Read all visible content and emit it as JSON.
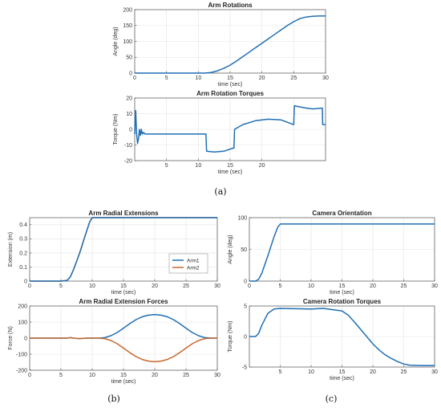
{
  "panel_labels": [
    "(a)",
    "(b)",
    "(c)"
  ],
  "chart_data": [
    {
      "id": "arm-rotations",
      "type": "line",
      "title": "Arm Rotations",
      "xlabel": "time (sec)",
      "ylabel": "Angle (deg)",
      "xlim": [
        0,
        30
      ],
      "ylim": [
        0,
        200
      ],
      "xticks": [
        0,
        5,
        10,
        15,
        20,
        25,
        30
      ],
      "yticks": [
        0,
        50,
        100,
        150,
        200
      ],
      "grid": true,
      "colors": [
        "#1f6fb4"
      ],
      "series": [
        {
          "values": [
            [
              0,
              0
            ],
            [
              5,
              0
            ],
            [
              10,
              0
            ],
            [
              11,
              0
            ],
            [
              12,
              2
            ],
            [
              13,
              7
            ],
            [
              14,
              15
            ],
            [
              15,
              25
            ],
            [
              16,
              38
            ],
            [
              17,
              52
            ],
            [
              18,
              66
            ],
            [
              19,
              80
            ],
            [
              20,
              94
            ],
            [
              21,
              108
            ],
            [
              22,
              122
            ],
            [
              23,
              136
            ],
            [
              24,
              150
            ],
            [
              25,
              162
            ],
            [
              26,
              172
            ],
            [
              27,
              177
            ],
            [
              28,
              179
            ],
            [
              29,
              180
            ],
            [
              30,
              180
            ]
          ]
        }
      ]
    },
    {
      "id": "arm-rotation-torques",
      "type": "line",
      "title": "Arm Rotation Torques",
      "xlabel": "time (sec)",
      "ylabel": "Torque (Nm)",
      "xlim": [
        0,
        30
      ],
      "ylim": [
        -20,
        20
      ],
      "xticks": [
        5,
        10,
        15,
        20
      ],
      "yticks": [
        -20,
        -10,
        0,
        10,
        20
      ],
      "grid": true,
      "colors": [
        "#1f6fb4"
      ],
      "series": [
        {
          "values": [
            [
              0,
              -3
            ],
            [
              0.15,
              12
            ],
            [
              0.3,
              -3
            ],
            [
              0.45,
              -9
            ],
            [
              0.6,
              -6
            ],
            [
              0.75,
              0
            ],
            [
              0.9,
              -4
            ],
            [
              1.05,
              0
            ],
            [
              1.2,
              -3
            ],
            [
              1.4,
              -2
            ],
            [
              1.6,
              -3
            ],
            [
              2,
              -3
            ],
            [
              11.2,
              -3
            ],
            [
              11.3,
              -14
            ],
            [
              12.5,
              -14.5
            ],
            [
              14,
              -14
            ],
            [
              15.5,
              -12
            ],
            [
              15.6,
              -12
            ],
            [
              15.7,
              0
            ],
            [
              17,
              3
            ],
            [
              19,
              5.5
            ],
            [
              21,
              6.5
            ],
            [
              23,
              6
            ],
            [
              25,
              3
            ],
            [
              25.1,
              15
            ],
            [
              27,
              13.5
            ],
            [
              28,
              13
            ],
            [
              29.5,
              13.5
            ],
            [
              29.55,
              3
            ],
            [
              30,
              3
            ]
          ]
        }
      ]
    },
    {
      "id": "arm-radial-extensions",
      "type": "line",
      "title": "Arm Radial Extensions",
      "xlabel": "time (sec)",
      "ylabel": "Extension (m)",
      "xlim": [
        0,
        30
      ],
      "ylim": [
        0,
        0.45
      ],
      "xticks": [
        0,
        5,
        10,
        15,
        20,
        25,
        30
      ],
      "yticks": [
        0,
        0.1,
        0.2,
        0.3,
        0.4
      ],
      "grid": true,
      "legend": "center-right",
      "colors": [
        "#1f6fb4",
        "#c8682e"
      ],
      "series": [
        {
          "name": "Arm1",
          "values": [
            [
              0,
              0
            ],
            [
              5,
              0
            ],
            [
              6,
              0.005
            ],
            [
              6.5,
              0.03
            ],
            [
              7,
              0.08
            ],
            [
              8,
              0.2
            ],
            [
              9,
              0.34
            ],
            [
              9.6,
              0.42
            ],
            [
              10,
              0.45
            ],
            [
              30,
              0.45
            ]
          ]
        },
        {
          "name": "Arm2",
          "values": [
            [
              0,
              0
            ],
            [
              5,
              0
            ],
            [
              6,
              0.005
            ],
            [
              6.5,
              0.03
            ],
            [
              7,
              0.08
            ],
            [
              8,
              0.2
            ],
            [
              9,
              0.34
            ],
            [
              9.6,
              0.42
            ],
            [
              10,
              0.45
            ],
            [
              30,
              0.45
            ]
          ]
        }
      ]
    },
    {
      "id": "arm-radial-extension-forces",
      "type": "line",
      "title": "Arm Radial Extension Forces",
      "xlabel": "time (sec)",
      "ylabel": "Force (N)",
      "xlim": [
        0,
        30
      ],
      "ylim": [
        -200,
        200
      ],
      "xticks": [
        0,
        5,
        10,
        15,
        20,
        25,
        30
      ],
      "yticks": [
        -200,
        -100,
        0,
        100,
        200
      ],
      "grid": true,
      "colors": [
        "#1f6fb4",
        "#c8682e"
      ],
      "series": [
        {
          "values": [
            [
              0,
              0
            ],
            [
              6,
              0
            ],
            [
              6.5,
              3
            ],
            [
              7,
              0
            ],
            [
              8,
              -3
            ],
            [
              9,
              0
            ],
            [
              10,
              0
            ],
            [
              11,
              0
            ],
            [
              12,
              3
            ],
            [
              13,
              15
            ],
            [
              14,
              35
            ],
            [
              15,
              62
            ],
            [
              16,
              90
            ],
            [
              17,
              115
            ],
            [
              18,
              133
            ],
            [
              19,
              143
            ],
            [
              20,
              147
            ],
            [
              21,
              143
            ],
            [
              22,
              133
            ],
            [
              23,
              115
            ],
            [
              24,
              90
            ],
            [
              25,
              62
            ],
            [
              26,
              35
            ],
            [
              27,
              15
            ],
            [
              28,
              3
            ],
            [
              29,
              0
            ],
            [
              30,
              0
            ]
          ]
        },
        {
          "values": [
            [
              0,
              0
            ],
            [
              6,
              0
            ],
            [
              6.5,
              3
            ],
            [
              7,
              0
            ],
            [
              8,
              -3
            ],
            [
              9,
              0
            ],
            [
              10,
              0
            ],
            [
              11,
              0
            ],
            [
              12,
              -3
            ],
            [
              13,
              -15
            ],
            [
              14,
              -35
            ],
            [
              15,
              -62
            ],
            [
              16,
              -90
            ],
            [
              17,
              -115
            ],
            [
              18,
              -133
            ],
            [
              19,
              -143
            ],
            [
              20,
              -147
            ],
            [
              21,
              -143
            ],
            [
              22,
              -133
            ],
            [
              23,
              -115
            ],
            [
              24,
              -90
            ],
            [
              25,
              -62
            ],
            [
              26,
              -35
            ],
            [
              27,
              -15
            ],
            [
              28,
              -3
            ],
            [
              29,
              0
            ],
            [
              30,
              0
            ]
          ]
        }
      ]
    },
    {
      "id": "camera-orientation",
      "type": "line",
      "title": "Camera Orientation",
      "xlabel": "time (sec)",
      "ylabel": "Angle (deg)",
      "xlim": [
        0,
        30
      ],
      "ylim": [
        0,
        100
      ],
      "xticks": [
        0,
        5,
        10,
        15,
        20,
        25,
        30
      ],
      "yticks": [
        0,
        50,
        100
      ],
      "grid": true,
      "colors": [
        "#1f6fb4"
      ],
      "series": [
        {
          "values": [
            [
              0,
              0
            ],
            [
              1,
              0
            ],
            [
              1.5,
              3
            ],
            [
              2,
              12
            ],
            [
              3,
              40
            ],
            [
              4,
              70
            ],
            [
              4.6,
              85
            ],
            [
              5,
              90
            ],
            [
              30,
              90
            ]
          ]
        }
      ]
    },
    {
      "id": "camera-rotation-torques",
      "type": "line",
      "title": "Camera Rotation Torques",
      "xlabel": "time (sec)",
      "ylabel": "Torque (Nm)",
      "xlim": [
        0,
        30
      ],
      "ylim": [
        -5,
        5
      ],
      "xticks": [
        5,
        10,
        15,
        20,
        25,
        30
      ],
      "yticks": [
        -5,
        0,
        5
      ],
      "grid": true,
      "colors": [
        "#1f6fb4"
      ],
      "series": [
        {
          "values": [
            [
              0,
              0
            ],
            [
              1,
              0
            ],
            [
              1.5,
              0.5
            ],
            [
              2,
              1.8
            ],
            [
              3,
              3.8
            ],
            [
              4,
              4.5
            ],
            [
              5,
              4.6
            ],
            [
              10,
              4.5
            ],
            [
              12,
              4.6
            ],
            [
              15,
              4.2
            ],
            [
              16,
              3.5
            ],
            [
              17,
              2.4
            ],
            [
              18,
              1.2
            ],
            [
              19,
              0
            ],
            [
              20,
              -1.2
            ],
            [
              21,
              -2.2
            ],
            [
              22,
              -3
            ],
            [
              23,
              -3.6
            ],
            [
              24,
              -4.1
            ],
            [
              25,
              -4.5
            ],
            [
              26,
              -4.7
            ],
            [
              28,
              -4.75
            ],
            [
              30,
              -4.75
            ]
          ]
        }
      ]
    }
  ]
}
